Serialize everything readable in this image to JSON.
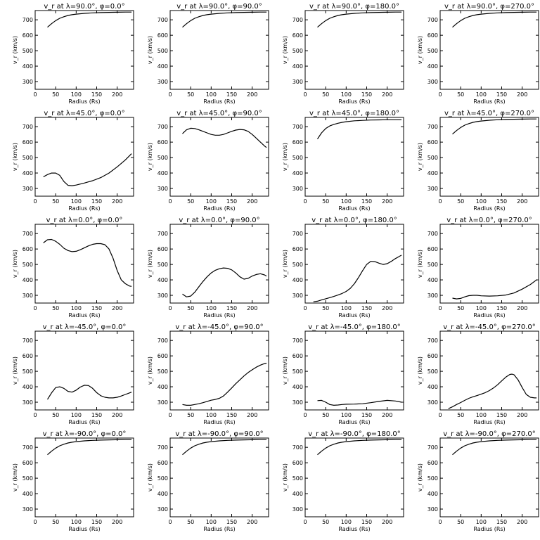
{
  "chart_data": [
    {
      "type": "line",
      "title": "v_r at λ=90.0°, φ=0.0°",
      "xlabel": "Radius (Rs)",
      "ylabel": "v_r (km/s)",
      "xlim": [
        0,
        240
      ],
      "ylim": [
        250,
        760
      ],
      "x": [
        30,
        40,
        50,
        60,
        70,
        80,
        90,
        100,
        120,
        140,
        160,
        180,
        200,
        220,
        235
      ],
      "values": [
        652,
        675,
        695,
        710,
        720,
        728,
        733,
        737,
        742,
        745,
        747,
        748,
        749,
        750,
        750
      ]
    },
    {
      "type": "line",
      "title": "v_r at λ=90.0°, φ=90.0°",
      "xlabel": "Radius (Rs)",
      "ylabel": "v_r (km/s)",
      "xlim": [
        0,
        240
      ],
      "ylim": [
        250,
        760
      ],
      "x": [
        30,
        40,
        50,
        60,
        70,
        80,
        90,
        100,
        120,
        140,
        160,
        180,
        200,
        220,
        235
      ],
      "values": [
        652,
        675,
        695,
        710,
        720,
        728,
        733,
        737,
        742,
        745,
        747,
        748,
        749,
        750,
        750
      ]
    },
    {
      "type": "line",
      "title": "v_r at λ=90.0°, φ=180.0°",
      "xlabel": "Radius (Rs)",
      "ylabel": "v_r (km/s)",
      "xlim": [
        0,
        240
      ],
      "ylim": [
        250,
        760
      ],
      "x": [
        30,
        40,
        50,
        60,
        70,
        80,
        90,
        100,
        120,
        140,
        160,
        180,
        200,
        220,
        235
      ],
      "values": [
        652,
        675,
        695,
        710,
        720,
        728,
        733,
        737,
        742,
        745,
        747,
        748,
        749,
        750,
        750
      ]
    },
    {
      "type": "line",
      "title": "v_r at λ=90.0°, φ=270.0°",
      "xlabel": "Radius (Rs)",
      "ylabel": "v_r (km/s)",
      "xlim": [
        0,
        240
      ],
      "ylim": [
        250,
        760
      ],
      "x": [
        30,
        40,
        50,
        60,
        70,
        80,
        90,
        100,
        120,
        140,
        160,
        180,
        200,
        220,
        235
      ],
      "values": [
        652,
        675,
        695,
        710,
        720,
        728,
        733,
        737,
        742,
        745,
        747,
        748,
        749,
        750,
        750
      ]
    },
    {
      "type": "line",
      "title": "v_r at λ=45.0°, φ=0.0°",
      "xlabel": "Radius (Rs)",
      "ylabel": "v_r (km/s)",
      "xlim": [
        0,
        240
      ],
      "ylim": [
        250,
        760
      ],
      "x": [
        20,
        30,
        40,
        50,
        60,
        70,
        80,
        90,
        100,
        120,
        140,
        160,
        180,
        200,
        220,
        235
      ],
      "values": [
        375,
        390,
        400,
        400,
        385,
        345,
        320,
        318,
        322,
        335,
        350,
        370,
        400,
        440,
        485,
        525
      ]
    },
    {
      "type": "line",
      "title": "v_r at λ=45.0°, φ=90.0°",
      "xlabel": "Radius (Rs)",
      "ylabel": "v_r (km/s)",
      "xlim": [
        0,
        240
      ],
      "ylim": [
        250,
        760
      ],
      "x": [
        30,
        40,
        50,
        60,
        70,
        80,
        90,
        100,
        110,
        120,
        130,
        140,
        150,
        160,
        170,
        180,
        190,
        200,
        210,
        220,
        230,
        235
      ],
      "values": [
        655,
        680,
        690,
        688,
        680,
        670,
        660,
        650,
        645,
        645,
        650,
        660,
        670,
        678,
        682,
        680,
        670,
        650,
        625,
        600,
        575,
        565
      ]
    },
    {
      "type": "line",
      "title": "v_r at λ=45.0°, φ=180.0°",
      "xlabel": "Radius (Rs)",
      "ylabel": "v_r (km/s)",
      "xlim": [
        0,
        240
      ],
      "ylim": [
        250,
        760
      ],
      "x": [
        30,
        40,
        50,
        60,
        70,
        80,
        90,
        100,
        120,
        140,
        160,
        180,
        200,
        220,
        235
      ],
      "values": [
        620,
        660,
        688,
        705,
        715,
        722,
        728,
        732,
        738,
        741,
        743,
        744,
        745,
        745,
        745
      ]
    },
    {
      "type": "line",
      "title": "v_r at λ=45.0°, φ=270.0°",
      "xlabel": "Radius (Rs)",
      "ylabel": "v_r (km/s)",
      "xlim": [
        0,
        240
      ],
      "ylim": [
        250,
        760
      ],
      "x": [
        30,
        40,
        50,
        60,
        70,
        80,
        90,
        100,
        120,
        140,
        160,
        180,
        200,
        220,
        235
      ],
      "values": [
        652,
        675,
        695,
        710,
        720,
        728,
        733,
        737,
        742,
        745,
        747,
        748,
        749,
        750,
        750
      ]
    },
    {
      "type": "line",
      "title": "v_r at λ=0.0°, φ=0.0°",
      "xlabel": "Radius (Rs)",
      "ylabel": "v_r (km/s)",
      "xlim": [
        0,
        240
      ],
      "ylim": [
        250,
        760
      ],
      "x": [
        20,
        30,
        40,
        50,
        60,
        70,
        80,
        90,
        100,
        110,
        120,
        130,
        140,
        150,
        160,
        170,
        180,
        190,
        200,
        210,
        220,
        230,
        235
      ],
      "values": [
        640,
        660,
        662,
        650,
        630,
        605,
        590,
        583,
        585,
        595,
        608,
        620,
        630,
        635,
        635,
        628,
        600,
        540,
        460,
        400,
        375,
        360,
        358
      ]
    },
    {
      "type": "line",
      "title": "v_r at λ=0.0°, φ=90.0°",
      "xlabel": "Radius (Rs)",
      "ylabel": "v_r (km/s)",
      "xlim": [
        0,
        240
      ],
      "ylim": [
        250,
        760
      ],
      "x": [
        30,
        40,
        50,
        60,
        70,
        80,
        90,
        100,
        110,
        120,
        130,
        140,
        150,
        160,
        170,
        180,
        190,
        200,
        210,
        220,
        230,
        235
      ],
      "values": [
        308,
        290,
        295,
        320,
        355,
        390,
        420,
        445,
        462,
        472,
        477,
        475,
        465,
        445,
        420,
        405,
        410,
        425,
        435,
        440,
        432,
        425
      ]
    },
    {
      "type": "line",
      "title": "v_r at λ=0.0°, φ=180.0°",
      "xlabel": "Radius (Rs)",
      "ylabel": "v_r (km/s)",
      "xlim": [
        0,
        240
      ],
      "ylim": [
        250,
        760
      ],
      "x": [
        20,
        30,
        40,
        50,
        60,
        70,
        80,
        90,
        100,
        110,
        120,
        130,
        140,
        150,
        160,
        170,
        180,
        190,
        200,
        210,
        220,
        230,
        235
      ],
      "values": [
        258,
        262,
        270,
        278,
        285,
        293,
        302,
        312,
        325,
        345,
        375,
        415,
        460,
        500,
        520,
        518,
        508,
        500,
        505,
        520,
        538,
        553,
        560
      ]
    },
    {
      "type": "line",
      "title": "v_r at λ=0.0°, φ=270.0°",
      "xlabel": "Radius (Rs)",
      "ylabel": "v_r (km/s)",
      "xlim": [
        0,
        240
      ],
      "ylim": [
        250,
        760
      ],
      "x": [
        30,
        40,
        50,
        60,
        70,
        80,
        90,
        100,
        120,
        140,
        160,
        180,
        200,
        220,
        235
      ],
      "values": [
        282,
        277,
        280,
        290,
        298,
        300,
        300,
        297,
        295,
        297,
        302,
        315,
        340,
        370,
        400
      ]
    },
    {
      "type": "line",
      "title": "v_r at λ=-45.0°, φ=0.0°",
      "xlabel": "Radius (Rs)",
      "ylabel": "v_r (km/s)",
      "xlim": [
        0,
        240
      ],
      "ylim": [
        250,
        760
      ],
      "x": [
        30,
        40,
        50,
        60,
        70,
        80,
        90,
        100,
        110,
        120,
        130,
        140,
        150,
        160,
        170,
        180,
        190,
        200,
        210,
        220,
        230,
        235
      ],
      "values": [
        318,
        360,
        395,
        400,
        390,
        370,
        365,
        378,
        398,
        410,
        408,
        390,
        362,
        342,
        332,
        328,
        328,
        332,
        340,
        350,
        360,
        365
      ]
    },
    {
      "type": "line",
      "title": "v_r at λ=-45.0°, φ=90.0°",
      "xlabel": "Radius (Rs)",
      "ylabel": "v_r (km/s)",
      "xlim": [
        0,
        240
      ],
      "ylim": [
        250,
        760
      ],
      "x": [
        30,
        40,
        50,
        60,
        70,
        80,
        90,
        100,
        110,
        120,
        130,
        140,
        150,
        160,
        170,
        180,
        190,
        200,
        210,
        220,
        230,
        235
      ],
      "values": [
        285,
        280,
        280,
        285,
        290,
        297,
        305,
        313,
        318,
        325,
        340,
        365,
        392,
        420,
        445,
        470,
        492,
        510,
        527,
        540,
        550,
        553
      ]
    },
    {
      "type": "line",
      "title": "v_r at λ=-45.0°, φ=180.0°",
      "xlabel": "Radius (Rs)",
      "ylabel": "v_r (km/s)",
      "xlim": [
        0,
        240
      ],
      "ylim": [
        250,
        760
      ],
      "x": [
        30,
        40,
        50,
        60,
        70,
        80,
        90,
        100,
        120,
        140,
        160,
        180,
        200,
        220,
        235
      ],
      "values": [
        310,
        312,
        300,
        285,
        280,
        282,
        285,
        287,
        288,
        290,
        297,
        305,
        312,
        308,
        300
      ]
    },
    {
      "type": "line",
      "title": "v_r at λ=-45.0°, φ=270.0°",
      "xlabel": "Radius (Rs)",
      "ylabel": "v_r (km/s)",
      "xlim": [
        0,
        240
      ],
      "ylim": [
        250,
        760
      ],
      "x": [
        20,
        30,
        40,
        50,
        60,
        70,
        80,
        90,
        100,
        110,
        120,
        130,
        140,
        150,
        160,
        170,
        175,
        180,
        190,
        200,
        210,
        220,
        230,
        235
      ],
      "values": [
        258,
        270,
        285,
        298,
        312,
        325,
        335,
        343,
        352,
        362,
        375,
        392,
        413,
        438,
        462,
        480,
        482,
        478,
        445,
        395,
        350,
        332,
        328,
        328
      ]
    },
    {
      "type": "line",
      "title": "v_r at λ=-90.0°, φ=0.0°",
      "xlabel": "Radius (Rs)",
      "ylabel": "v_r (km/s)",
      "xlim": [
        0,
        240
      ],
      "ylim": [
        250,
        760
      ],
      "x": [
        30,
        40,
        50,
        60,
        70,
        80,
        90,
        100,
        120,
        140,
        160,
        180,
        200,
        220,
        235
      ],
      "values": [
        652,
        675,
        695,
        710,
        720,
        728,
        733,
        737,
        742,
        745,
        747,
        748,
        749,
        750,
        750
      ]
    },
    {
      "type": "line",
      "title": "v_r at λ=-90.0°, φ=90.0°",
      "xlabel": "Radius (Rs)",
      "ylabel": "v_r (km/s)",
      "xlim": [
        0,
        240
      ],
      "ylim": [
        250,
        760
      ],
      "x": [
        30,
        40,
        50,
        60,
        70,
        80,
        90,
        100,
        120,
        140,
        160,
        180,
        200,
        220,
        235
      ],
      "values": [
        652,
        675,
        695,
        710,
        720,
        728,
        733,
        737,
        742,
        745,
        747,
        748,
        749,
        750,
        750
      ]
    },
    {
      "type": "line",
      "title": "v_r at λ=-90.0°, φ=180.0°",
      "xlabel": "Radius (Rs)",
      "ylabel": "v_r (km/s)",
      "xlim": [
        0,
        240
      ],
      "ylim": [
        250,
        760
      ],
      "x": [
        30,
        40,
        50,
        60,
        70,
        80,
        90,
        100,
        120,
        140,
        160,
        180,
        200,
        220,
        235
      ],
      "values": [
        652,
        675,
        695,
        710,
        720,
        728,
        733,
        737,
        742,
        745,
        747,
        748,
        749,
        750,
        750
      ]
    },
    {
      "type": "line",
      "title": "v_r at λ=-90.0°, φ=270.0°",
      "xlabel": "Radius (Rs)",
      "ylabel": "v_r (km/s)",
      "xlim": [
        0,
        240
      ],
      "ylim": [
        250,
        760
      ],
      "x": [
        30,
        40,
        50,
        60,
        70,
        80,
        90,
        100,
        120,
        140,
        160,
        180,
        200,
        220,
        235
      ],
      "values": [
        652,
        675,
        695,
        710,
        720,
        728,
        733,
        737,
        742,
        745,
        747,
        748,
        749,
        750,
        750
      ]
    }
  ],
  "axes": {
    "xticks": [
      0,
      50,
      100,
      150,
      200
    ],
    "yticks": [
      300,
      400,
      500,
      600,
      700
    ],
    "line_color": "#000000"
  }
}
